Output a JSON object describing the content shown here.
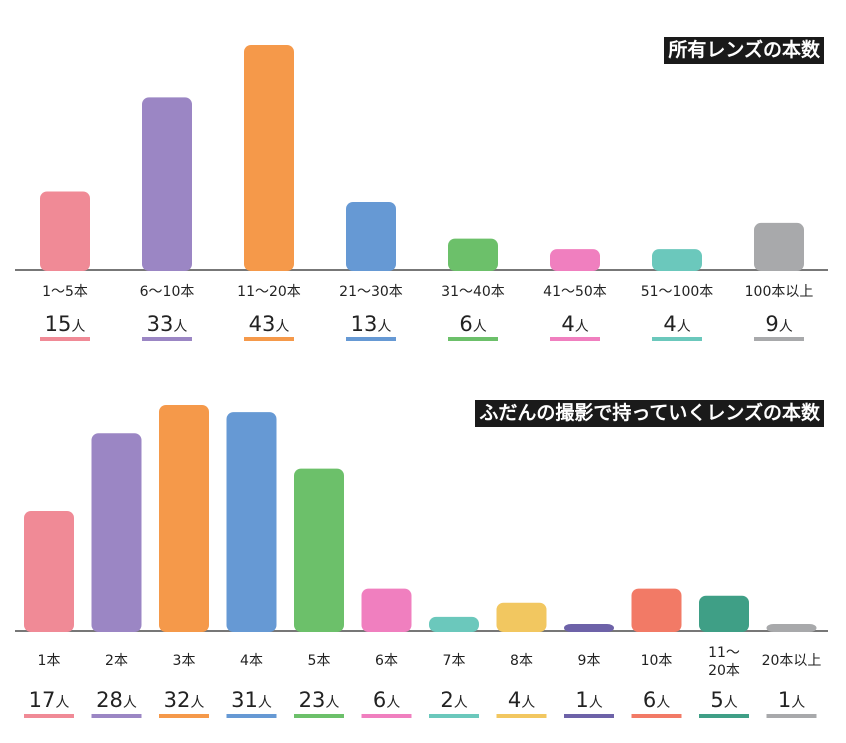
{
  "chart_data": [
    {
      "type": "bar",
      "title": "所有レンズの本数",
      "unit": "人",
      "categories": [
        "1〜5本",
        "6〜10本",
        "11〜20本",
        "21〜30本",
        "31〜40本",
        "41〜50本",
        "51〜100本",
        "100本以上"
      ],
      "values": [
        15,
        33,
        43,
        13,
        6,
        4,
        4,
        9
      ],
      "colors": [
        "#f08a96",
        "#9b86c4",
        "#f5994a",
        "#6699d4",
        "#6cc06a",
        "#f07fbf",
        "#6bc8bc",
        "#a8a9ab"
      ]
    },
    {
      "type": "bar",
      "title": "ふだんの撮影で持っていくレンズの本数",
      "unit": "人",
      "categories": [
        "1本",
        "2本",
        "3本",
        "4本",
        "5本",
        "6本",
        "7本",
        "8本",
        "9本",
        "10本",
        "11〜20本",
        "20本以上"
      ],
      "values": [
        17,
        28,
        32,
        31,
        23,
        6,
        2,
        4,
        1,
        6,
        5,
        1
      ],
      "colors": [
        "#f08a96",
        "#9b86c4",
        "#f5994a",
        "#6699d4",
        "#6cc06a",
        "#f07fbf",
        "#6bc8bc",
        "#f2c760",
        "#6d62a8",
        "#f27a66",
        "#3f9f86",
        "#a8a9ab"
      ]
    }
  ]
}
